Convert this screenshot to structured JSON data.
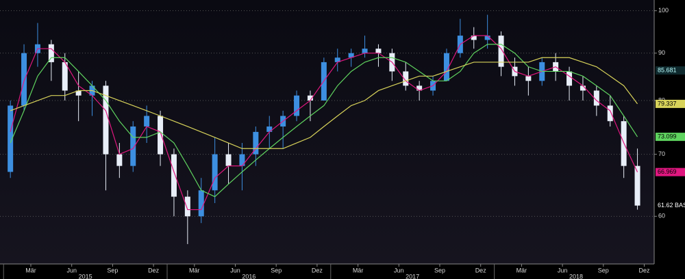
{
  "chart_data": {
    "type": "candlestick",
    "log_scale": true,
    "grid": true,
    "x": [
      "2015-01",
      "2015-02",
      "2015-03",
      "2015-04",
      "2015-05",
      "2015-06",
      "2015-07",
      "2015-08",
      "2015-09",
      "2015-10",
      "2015-11",
      "2015-12",
      "2016-01",
      "2016-02",
      "2016-03",
      "2016-04",
      "2016-05",
      "2016-06",
      "2016-07",
      "2016-08",
      "2016-09",
      "2016-10",
      "2016-11",
      "2016-12",
      "2017-01",
      "2017-02",
      "2017-03",
      "2017-04",
      "2017-05",
      "2017-06",
      "2017-07",
      "2017-08",
      "2017-09",
      "2017-10",
      "2017-11",
      "2017-12",
      "2018-01",
      "2018-02",
      "2018-03",
      "2018-04",
      "2018-05",
      "2018-06",
      "2018-07",
      "2018-08",
      "2018-09",
      "2018-10",
      "2018-11"
    ],
    "open": [
      67,
      79,
      90,
      92,
      88,
      82,
      81,
      83,
      70,
      68,
      75,
      77,
      70,
      63,
      60,
      64,
      70,
      68,
      70,
      74,
      75,
      77,
      81,
      80,
      88,
      89,
      90,
      91,
      90,
      86,
      83,
      82,
      84,
      90,
      94,
      93,
      94,
      87,
      85,
      84,
      88,
      86,
      83,
      82,
      79,
      76,
      68
    ],
    "high": [
      80,
      92,
      97,
      93,
      90,
      86,
      84,
      84,
      72,
      76,
      79,
      78,
      71,
      64,
      66,
      73,
      72,
      72,
      75,
      77,
      78,
      82,
      82,
      89,
      91,
      91,
      94,
      92,
      91,
      88,
      84,
      85,
      91,
      98,
      96,
      99,
      95,
      89,
      87,
      89,
      90,
      87,
      85,
      83,
      81,
      77,
      71
    ],
    "low": [
      66,
      78,
      87,
      84,
      80,
      76,
      77,
      64,
      66,
      67,
      72,
      68,
      60,
      56,
      59,
      62,
      65,
      64,
      68,
      71,
      71,
      76,
      76,
      80,
      86,
      87,
      89,
      87,
      84,
      82,
      80,
      81,
      84,
      89,
      91,
      91,
      85,
      83,
      81,
      83,
      84,
      80,
      80,
      77,
      75,
      66,
      61
    ],
    "close": [
      79,
      90,
      92,
      88,
      82,
      81,
      83,
      70,
      68,
      75,
      77,
      70,
      63,
      60,
      64,
      70,
      68,
      70,
      74,
      75,
      77,
      81,
      80,
      88,
      89,
      90,
      91,
      90,
      86,
      83,
      82,
      84,
      90,
      94,
      93,
      94,
      87,
      85,
      84,
      88,
      86,
      83,
      82,
      79,
      76,
      68,
      61.62
    ],
    "up_color": "#3d8fe0",
    "down_color": "#e8eef8",
    "series": [
      {
        "color": "#e0177f",
        "values": [
          74,
          84,
          91,
          91,
          88,
          83,
          81,
          78,
          70,
          71,
          75,
          74,
          67,
          61,
          61,
          66,
          68,
          68,
          71,
          74,
          76,
          78,
          80,
          84,
          88,
          89,
          90,
          90,
          88,
          84,
          82,
          83,
          86,
          92,
          94,
          94,
          91,
          86,
          85,
          86,
          87,
          85,
          83,
          80,
          78,
          72,
          66.969
        ]
      },
      {
        "color": "#5fd35f",
        "values": [
          72,
          78,
          85,
          89,
          89,
          86,
          83,
          80,
          76,
          73,
          73,
          74,
          72,
          68,
          64,
          63,
          65,
          67,
          69,
          71,
          73,
          75,
          77,
          79,
          83,
          86,
          88,
          89,
          89,
          88,
          86,
          84,
          84,
          86,
          90,
          92,
          92,
          90,
          87,
          86,
          86,
          86,
          85,
          83,
          81,
          77,
          73.099
        ]
      },
      {
        "color": "#d8d35a",
        "values": [
          78,
          79,
          80,
          81,
          81,
          82,
          82,
          81,
          80,
          79,
          78,
          77,
          76,
          75,
          74,
          73,
          72,
          71,
          71,
          71,
          71,
          72,
          73,
          75,
          77,
          79,
          80,
          82,
          83,
          84,
          85,
          85,
          86,
          87,
          88,
          88,
          88,
          88,
          88,
          89,
          89,
          89,
          88,
          87,
          85,
          83,
          79.337
        ]
      }
    ],
    "annotations": [
      "85.681",
      "61.62 BAS"
    ],
    "ylim": [
      53.3,
      102.7
    ],
    "yticks": [
      60,
      70,
      80,
      90,
      100
    ],
    "xticks": [
      {
        "value": "2015-03",
        "label": "Mär"
      },
      {
        "value": "2015-06",
        "label": "Jun"
      },
      {
        "value": "2015-09",
        "label": "Sep"
      },
      {
        "value": "2015-12",
        "label": "Dez"
      },
      {
        "value": "2016-03",
        "label": "Mär"
      },
      {
        "value": "2016-06",
        "label": "Jun"
      },
      {
        "value": "2016-09",
        "label": "Sep"
      },
      {
        "value": "2016-12",
        "label": "Dez"
      },
      {
        "value": "2017-03",
        "label": "Mär"
      },
      {
        "value": "2017-06",
        "label": "Jun"
      },
      {
        "value": "2017-09",
        "label": "Sep"
      },
      {
        "value": "2017-12",
        "label": "Dez"
      },
      {
        "value": "2018-03",
        "label": "Mär"
      },
      {
        "value": "2018-06",
        "label": "Jun"
      },
      {
        "value": "2018-09",
        "label": "Sep"
      },
      {
        "value": "2018-12",
        "label": "Dez"
      }
    ],
    "year_ticks": [
      2015,
      2016,
      2017,
      2018
    ]
  }
}
